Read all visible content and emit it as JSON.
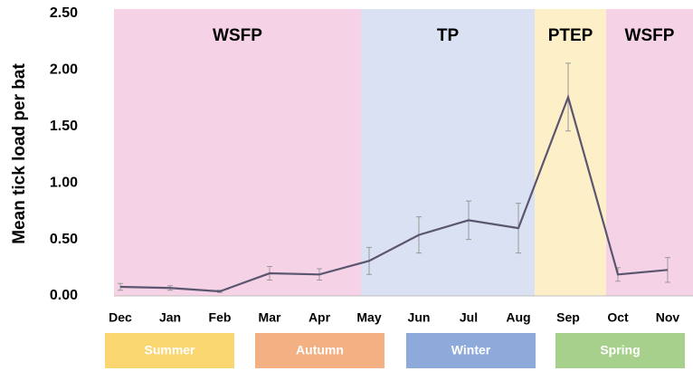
{
  "chart_data": {
    "type": "line",
    "ylabel": "Mean tick load per bat",
    "categories": [
      "Dec",
      "Jan",
      "Feb",
      "Mar",
      "Apr",
      "May",
      "Jun",
      "Jul",
      "Aug",
      "Sep",
      "Oct",
      "Nov"
    ],
    "values": [
      0.08,
      0.07,
      0.04,
      0.2,
      0.19,
      0.31,
      0.54,
      0.67,
      0.6,
      1.76,
      0.19,
      0.23
    ],
    "errors": [
      0.03,
      0.02,
      0.01,
      0.06,
      0.05,
      0.12,
      0.16,
      0.17,
      0.22,
      0.3,
      0.06,
      0.11
    ],
    "color": "#5b5670",
    "ylim": [
      0,
      2.5
    ],
    "yticks": [
      {
        "value": 0,
        "label": "0.00"
      },
      {
        "value": 0.5,
        "label": "0.50"
      },
      {
        "value": 1,
        "label": "1.00"
      },
      {
        "value": 1.5,
        "label": "1.50"
      },
      {
        "value": 2,
        "label": "2.00"
      },
      {
        "value": 2.5,
        "label": "2.50"
      }
    ],
    "periods": [
      {
        "label": "WSFP",
        "color": "#f6d2e6"
      },
      {
        "label": "TP",
        "color": "#d9e1f2"
      },
      {
        "label": "PTEP",
        "color": "#fdf0c8"
      },
      {
        "label": "WSFP",
        "color": "#f6d2e6"
      }
    ],
    "seasons": [
      {
        "label": "Summer",
        "color": "#f9d670"
      },
      {
        "label": "Autumn",
        "color": "#f2b083"
      },
      {
        "label": "Winter",
        "color": "#8eaadb"
      },
      {
        "label": "Spring",
        "color": "#a8d08d"
      }
    ]
  }
}
